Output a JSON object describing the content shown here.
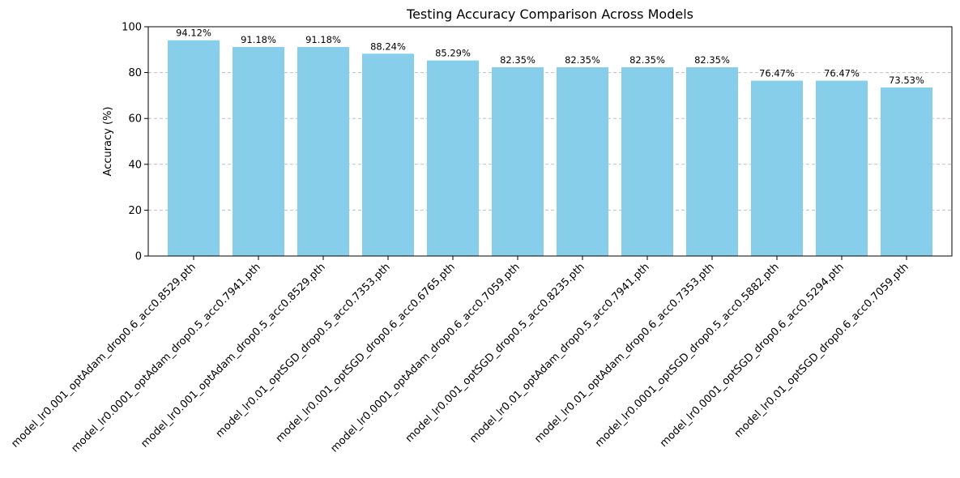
{
  "chart_data": {
    "type": "bar",
    "title": "Testing Accuracy Comparison Across Models",
    "xlabel": "",
    "ylabel": "Accuracy (%)",
    "ylim": [
      0,
      100
    ],
    "yticks": [
      0,
      20,
      40,
      60,
      80,
      100
    ],
    "grid": "y-dashed",
    "bar_color": "#87ceeb",
    "grid_color": "#c0c0c0",
    "categories": [
      "model_lr0.001_optAdam_drop0.6_acc0.8529.pth",
      "model_lr0.0001_optAdam_drop0.5_acc0.7941.pth",
      "model_lr0.001_optAdam_drop0.5_acc0.8529.pth",
      "model_lr0.01_optSGD_drop0.5_acc0.7353.pth",
      "model_lr0.001_optSGD_drop0.6_acc0.6765.pth",
      "model_lr0.0001_optAdam_drop0.6_acc0.7059.pth",
      "model_lr0.001_optSGD_drop0.5_acc0.8235.pth",
      "model_lr0.01_optAdam_drop0.5_acc0.7941.pth",
      "model_lr0.01_optAdam_drop0.6_acc0.7353.pth",
      "model_lr0.0001_optSGD_drop0.5_acc0.5882.pth",
      "model_lr0.0001_optSGD_drop0.6_acc0.5294.pth",
      "model_lr0.01_optSGD_drop0.6_acc0.7059.pth"
    ],
    "values": [
      94.12,
      91.18,
      91.18,
      88.24,
      85.29,
      82.35,
      82.35,
      82.35,
      82.35,
      76.47,
      76.47,
      73.53
    ],
    "value_labels": [
      "94.12%",
      "91.18%",
      "91.18%",
      "88.24%",
      "85.29%",
      "82.35%",
      "82.35%",
      "82.35%",
      "82.35%",
      "76.47%",
      "76.47%",
      "73.53%"
    ]
  }
}
